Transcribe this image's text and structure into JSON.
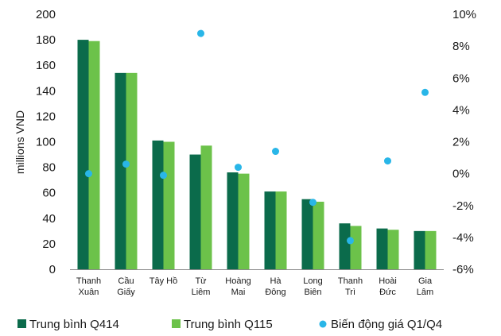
{
  "chart_data": {
    "type": "bar",
    "categories": [
      [
        "Thanh",
        "Xuân"
      ],
      [
        "Cầu",
        "Giấy"
      ],
      [
        "Tây Hồ"
      ],
      [
        "Từ",
        "Liêm"
      ],
      [
        "Hoàng",
        "Mai"
      ],
      [
        "Hà",
        "Đông"
      ],
      [
        "Long",
        "Biên"
      ],
      [
        "Thanh",
        "Trì"
      ],
      [
        "Hoài",
        "Đức"
      ],
      [
        "Gia",
        "Lâm"
      ]
    ],
    "ylabel": "millions VND",
    "ylim": [
      0,
      200
    ],
    "yticks": [
      0,
      20,
      40,
      60,
      80,
      100,
      120,
      140,
      160,
      180,
      200
    ],
    "y2lim": [
      -6,
      10
    ],
    "y2ticks": [
      "-6%",
      "-4%",
      "-2%",
      "0%",
      "2%",
      "4%",
      "6%",
      "8%",
      "10%"
    ],
    "y2tick_values": [
      -6,
      -4,
      -2,
      0,
      2,
      4,
      6,
      8,
      10
    ],
    "series": [
      {
        "name": "Trung bình Q414",
        "kind": "bar",
        "axis": "left",
        "color": "#0b6b4b",
        "values": [
          180,
          154,
          101,
          90,
          76,
          61,
          55,
          36,
          32,
          30
        ]
      },
      {
        "name": "Trung bình Q115",
        "kind": "bar",
        "axis": "left",
        "color": "#6cc24a",
        "values": [
          179,
          154,
          100,
          97,
          75,
          61,
          53,
          34,
          31,
          30
        ]
      },
      {
        "name": "Biến động giá Q1/Q4",
        "kind": "scatter",
        "axis": "right",
        "color": "#29b6e8",
        "values": [
          0.0,
          0.6,
          -0.1,
          8.8,
          0.4,
          1.4,
          -1.8,
          -4.2,
          0.8,
          5.1
        ]
      }
    ],
    "legend": "bottom",
    "grid": false
  }
}
